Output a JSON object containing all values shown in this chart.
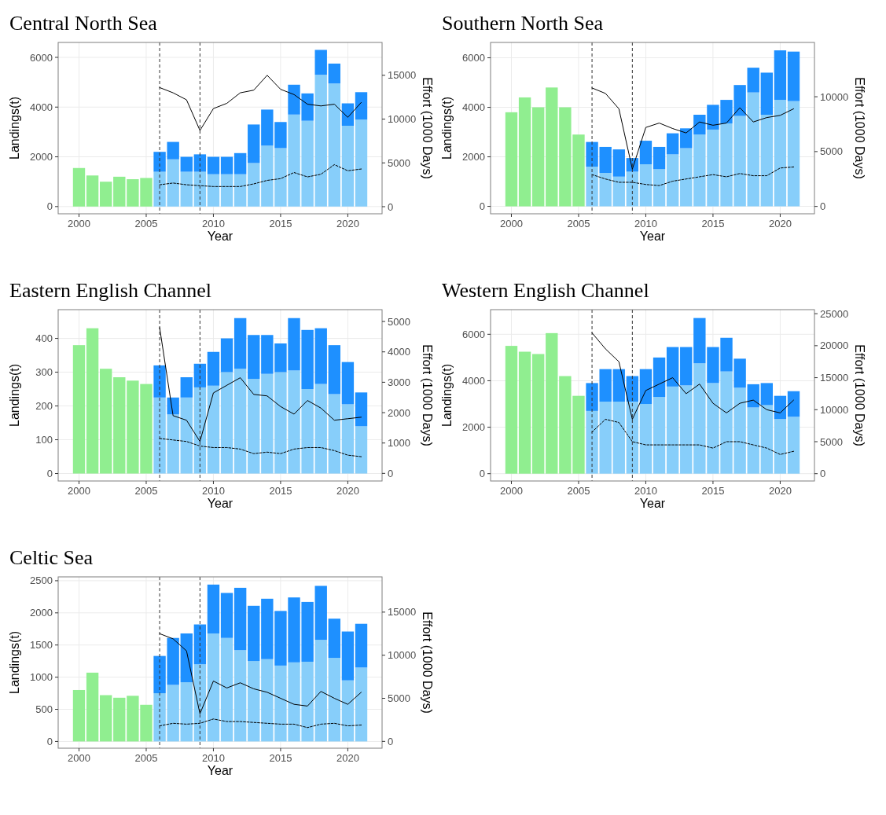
{
  "chart_data": [
    {
      "type": "bar",
      "title": "Central North Sea",
      "xlabel": "Year",
      "ylabel": "Landings(t)",
      "y2label": "Effort (1000 Days)",
      "stacked": true,
      "grid": true,
      "x": [
        2000,
        2001,
        2002,
        2003,
        2004,
        2005,
        2006,
        2007,
        2008,
        2009,
        2010,
        2011,
        2012,
        2013,
        2014,
        2015,
        2016,
        2017,
        2018,
        2019,
        2020,
        2021
      ],
      "xlim": [
        1998.45,
        2022.55
      ],
      "xticks": [
        2000,
        2005,
        2010,
        2015,
        2020
      ],
      "ylim": [
        -290,
        6600
      ],
      "yticks": [
        0,
        2000,
        4000,
        6000
      ],
      "y2lim": [
        -810,
        18750
      ],
      "y2ticks": [
        0,
        5000,
        10000,
        15000
      ],
      "ref_lines": [
        {
          "axis": "x",
          "value": 2006,
          "color": "#333333",
          "line_style": "dashed"
        },
        {
          "axis": "x",
          "value": 2009,
          "color": "#333333",
          "line_style": "dashed"
        }
      ],
      "series": [
        {
          "color": "#90ee90",
          "values": [
            1550,
            1250,
            1000,
            1200,
            1100,
            1150,
            null,
            null,
            null,
            null,
            null,
            null,
            null,
            null,
            null,
            null,
            null,
            null,
            null,
            null,
            null,
            null
          ]
        },
        {
          "color": "#87cefa",
          "values": [
            null,
            null,
            null,
            null,
            null,
            null,
            1400,
            1900,
            1400,
            1400,
            1300,
            1300,
            1300,
            1750,
            2450,
            2350,
            3700,
            3450,
            5300,
            4950,
            3250,
            3500
          ]
        },
        {
          "color": "#1e90ff",
          "values": [
            null,
            null,
            null,
            null,
            null,
            null,
            800,
            700,
            600,
            700,
            700,
            700,
            850,
            1550,
            1450,
            1050,
            1200,
            1100,
            1000,
            800,
            900,
            1100
          ]
        },
        {
          "type": "line",
          "axis": "y2",
          "color": "#000000",
          "line_style": "solid",
          "values": [
            null,
            null,
            null,
            null,
            null,
            null,
            13600,
            13000,
            12200,
            8700,
            11200,
            11800,
            13000,
            13300,
            15000,
            13400,
            12800,
            11700,
            11500,
            11700,
            10200,
            11900
          ]
        },
        {
          "type": "line",
          "axis": "y2",
          "color": "#000000",
          "line_style": "dotted",
          "values": [
            null,
            null,
            null,
            null,
            null,
            null,
            2500,
            2700,
            2500,
            2400,
            2300,
            2300,
            2300,
            2600,
            3000,
            3200,
            3900,
            3400,
            3700,
            4800,
            4100,
            4300
          ]
        }
      ]
    },
    {
      "type": "bar",
      "title": "Southern North Sea",
      "xlabel": "Year",
      "ylabel": "Landings(t)",
      "y2label": "Effort (1000 Days)",
      "stacked": true,
      "grid": true,
      "x": [
        2000,
        2001,
        2002,
        2003,
        2004,
        2005,
        2006,
        2007,
        2008,
        2009,
        2010,
        2011,
        2012,
        2013,
        2014,
        2015,
        2016,
        2017,
        2018,
        2019,
        2020,
        2021
      ],
      "xlim": [
        1998.45,
        2022.55
      ],
      "xticks": [
        2000,
        2005,
        2010,
        2015,
        2020
      ],
      "ylim": [
        -300,
        6620
      ],
      "yticks": [
        0,
        2000,
        4000,
        6000
      ],
      "y2lim": [
        -670,
        14950
      ],
      "y2ticks": [
        0,
        5000,
        10000
      ],
      "ref_lines": [
        {
          "axis": "x",
          "value": 2006,
          "color": "#333333",
          "line_style": "dashed"
        },
        {
          "axis": "x",
          "value": 2009,
          "color": "#333333",
          "line_style": "dashed"
        }
      ],
      "series": [
        {
          "color": "#90ee90",
          "values": [
            3800,
            4400,
            4000,
            4800,
            4000,
            2900,
            null,
            null,
            null,
            null,
            null,
            null,
            null,
            null,
            null,
            null,
            null,
            null,
            null,
            null,
            null,
            null
          ]
        },
        {
          "color": "#87cefa",
          "values": [
            null,
            null,
            null,
            null,
            null,
            null,
            1600,
            1350,
            1200,
            1400,
            1700,
            1500,
            2100,
            2350,
            2900,
            3100,
            3350,
            3650,
            4600,
            3700,
            4300,
            4250
          ]
        },
        {
          "color": "#1e90ff",
          "values": [
            null,
            null,
            null,
            null,
            null,
            null,
            1000,
            1050,
            1100,
            550,
            950,
            900,
            850,
            800,
            800,
            1000,
            950,
            1250,
            1000,
            1700,
            2000,
            2000
          ]
        },
        {
          "type": "line",
          "axis": "y2",
          "color": "#000000",
          "line_style": "solid",
          "values": [
            null,
            null,
            null,
            null,
            null,
            null,
            10800,
            10300,
            8900,
            3400,
            7200,
            7600,
            7100,
            6700,
            7700,
            7400,
            7600,
            9000,
            7700,
            8100,
            8300,
            8900
          ]
        },
        {
          "type": "line",
          "axis": "y2",
          "color": "#000000",
          "line_style": "dotted",
          "values": [
            null,
            null,
            null,
            null,
            null,
            null,
            2900,
            2500,
            2200,
            2200,
            2000,
            1900,
            2300,
            2500,
            2700,
            2900,
            2700,
            3000,
            2800,
            2800,
            3500,
            3600
          ]
        }
      ]
    },
    {
      "type": "bar",
      "title": "Eastern English Channel",
      "xlabel": "Year",
      "ylabel": "Landings(t)",
      "y2label": "Effort (1000 Days)",
      "stacked": true,
      "grid": true,
      "x": [
        2000,
        2001,
        2002,
        2003,
        2004,
        2005,
        2006,
        2007,
        2008,
        2009,
        2010,
        2011,
        2012,
        2013,
        2014,
        2015,
        2016,
        2017,
        2018,
        2019,
        2020,
        2021
      ],
      "xlim": [
        1998.45,
        2022.55
      ],
      "xticks": [
        2000,
        2005,
        2010,
        2015,
        2020
      ],
      "ylim": [
        -22,
        485
      ],
      "yticks": [
        0,
        100,
        200,
        300,
        400
      ],
      "y2lim": [
        -250,
        5390
      ],
      "y2ticks": [
        0,
        1000,
        2000,
        3000,
        4000,
        5000
      ],
      "ref_lines": [
        {
          "axis": "x",
          "value": 2006,
          "color": "#333333",
          "line_style": "dashed"
        },
        {
          "axis": "x",
          "value": 2009,
          "color": "#333333",
          "line_style": "dashed"
        }
      ],
      "series": [
        {
          "color": "#90ee90",
          "values": [
            380,
            430,
            310,
            285,
            275,
            265,
            null,
            null,
            null,
            null,
            null,
            null,
            null,
            null,
            null,
            null,
            null,
            null,
            null,
            null,
            null,
            null
          ]
        },
        {
          "color": "#87cefa",
          "values": [
            null,
            null,
            null,
            null,
            null,
            null,
            225,
            175,
            225,
            255,
            260,
            300,
            310,
            280,
            295,
            300,
            305,
            250,
            265,
            235,
            205,
            140
          ]
        },
        {
          "color": "#1e90ff",
          "values": [
            null,
            null,
            null,
            null,
            null,
            null,
            95,
            50,
            60,
            70,
            100,
            100,
            150,
            130,
            115,
            85,
            155,
            175,
            165,
            145,
            125,
            100
          ]
        },
        {
          "type": "line",
          "axis": "y2",
          "color": "#000000",
          "line_style": "solid",
          "values": [
            null,
            null,
            null,
            null,
            null,
            null,
            4800,
            1900,
            1750,
            1050,
            2650,
            2900,
            3150,
            2600,
            2550,
            2200,
            1950,
            2400,
            2150,
            1750,
            1800,
            1850
          ]
        },
        {
          "type": "line",
          "axis": "y2",
          "color": "#000000",
          "line_style": "dotted",
          "values": [
            null,
            null,
            null,
            null,
            null,
            null,
            1150,
            1100,
            1050,
            900,
            850,
            850,
            800,
            650,
            700,
            650,
            800,
            850,
            850,
            750,
            600,
            550
          ]
        }
      ]
    },
    {
      "type": "bar",
      "title": "Western English Channel",
      "xlabel": "Year",
      "ylabel": "Landings(t)",
      "y2label": "Effort (1000 Days)",
      "stacked": true,
      "grid": true,
      "x": [
        2000,
        2001,
        2002,
        2003,
        2004,
        2005,
        2006,
        2007,
        2008,
        2009,
        2010,
        2011,
        2012,
        2013,
        2014,
        2015,
        2016,
        2017,
        2018,
        2019,
        2020,
        2021
      ],
      "xlim": [
        1998.45,
        2022.55
      ],
      "xticks": [
        2000,
        2005,
        2010,
        2015,
        2020
      ],
      "ylim": [
        -315,
        7060
      ],
      "yticks": [
        0,
        2000,
        4000,
        6000
      ],
      "y2lim": [
        -1140,
        25630
      ],
      "y2ticks": [
        0,
        5000,
        10000,
        15000,
        20000,
        25000
      ],
      "ref_lines": [
        {
          "axis": "x",
          "value": 2006,
          "color": "#333333",
          "line_style": "dashed"
        },
        {
          "axis": "x",
          "value": 2009,
          "color": "#333333",
          "line_style": "dashed"
        }
      ],
      "series": [
        {
          "color": "#90ee90",
          "values": [
            5500,
            5250,
            5150,
            6050,
            4200,
            3350,
            null,
            null,
            null,
            null,
            null,
            null,
            null,
            null,
            null,
            null,
            null,
            null,
            null,
            null,
            null,
            null
          ]
        },
        {
          "color": "#87cefa",
          "values": [
            null,
            null,
            null,
            null,
            null,
            null,
            2700,
            3100,
            3100,
            3100,
            3000,
            3300,
            3750,
            3800,
            4750,
            3900,
            4400,
            3700,
            2850,
            2950,
            2350,
            2450
          ]
        },
        {
          "color": "#1e90ff",
          "values": [
            null,
            null,
            null,
            null,
            null,
            null,
            1200,
            1400,
            1400,
            1100,
            1500,
            1700,
            1700,
            1650,
            1950,
            1550,
            1450,
            1250,
            1000,
            950,
            1000,
            1100
          ]
        },
        {
          "type": "line",
          "axis": "y2",
          "color": "#000000",
          "line_style": "solid",
          "values": [
            null,
            null,
            null,
            null,
            null,
            null,
            22000,
            19500,
            17500,
            8500,
            13000,
            14000,
            15000,
            12500,
            14000,
            11000,
            9500,
            11000,
            11500,
            10000,
            9500,
            11500
          ]
        },
        {
          "type": "line",
          "axis": "y2",
          "color": "#000000",
          "line_style": "dotted",
          "values": [
            null,
            null,
            null,
            null,
            null,
            null,
            6500,
            8500,
            8000,
            5000,
            4500,
            4500,
            4500,
            4500,
            4500,
            4000,
            5000,
            5000,
            4500,
            4000,
            3000,
            3500
          ]
        }
      ]
    },
    {
      "type": "bar",
      "title": "Celtic Sea",
      "xlabel": "Year",
      "ylabel": "Landings(t)",
      "y2label": "Effort (1000 Days)",
      "stacked": true,
      "grid": true,
      "x": [
        2000,
        2001,
        2002,
        2003,
        2004,
        2005,
        2006,
        2007,
        2008,
        2009,
        2010,
        2011,
        2012,
        2013,
        2014,
        2015,
        2016,
        2017,
        2018,
        2019,
        2020,
        2021
      ],
      "xlim": [
        1998.45,
        2022.55
      ],
      "xticks": [
        2000,
        2005,
        2010,
        2015,
        2020
      ],
      "ylim": [
        -105,
        2560
      ],
      "yticks": [
        0,
        500,
        1000,
        1500,
        2000,
        2500
      ],
      "y2lim": [
        -790,
        19090
      ],
      "y2ticks": [
        0,
        5000,
        10000,
        15000
      ],
      "ref_lines": [
        {
          "axis": "x",
          "value": 2006,
          "color": "#333333",
          "line_style": "dashed"
        },
        {
          "axis": "x",
          "value": 2009,
          "color": "#333333",
          "line_style": "dashed"
        }
      ],
      "series": [
        {
          "color": "#90ee90",
          "values": [
            800,
            1070,
            720,
            680,
            710,
            570,
            null,
            null,
            null,
            null,
            null,
            null,
            null,
            null,
            null,
            null,
            null,
            null,
            null,
            null,
            null,
            null
          ]
        },
        {
          "color": "#87cefa",
          "values": [
            null,
            null,
            null,
            null,
            null,
            null,
            750,
            880,
            920,
            1200,
            1680,
            1610,
            1420,
            1250,
            1280,
            1180,
            1230,
            1240,
            1580,
            1300,
            950,
            1150
          ]
        },
        {
          "color": "#1e90ff",
          "values": [
            null,
            null,
            null,
            null,
            null,
            null,
            580,
            730,
            760,
            620,
            760,
            700,
            970,
            860,
            940,
            850,
            1010,
            930,
            840,
            610,
            760,
            680
          ]
        },
        {
          "type": "line",
          "axis": "y2",
          "color": "#000000",
          "line_style": "solid",
          "values": [
            null,
            null,
            null,
            null,
            null,
            null,
            12500,
            11900,
            10500,
            3200,
            7000,
            6200,
            6800,
            6100,
            5700,
            5000,
            4300,
            4100,
            5800,
            5000,
            4300,
            5700
          ]
        },
        {
          "type": "line",
          "axis": "y2",
          "color": "#000000",
          "line_style": "dotted",
          "values": [
            null,
            null,
            null,
            null,
            null,
            null,
            1800,
            2100,
            2000,
            2100,
            2600,
            2300,
            2300,
            2200,
            2100,
            2000,
            2000,
            1600,
            2000,
            2100,
            1800,
            1900
          ]
        }
      ]
    }
  ]
}
